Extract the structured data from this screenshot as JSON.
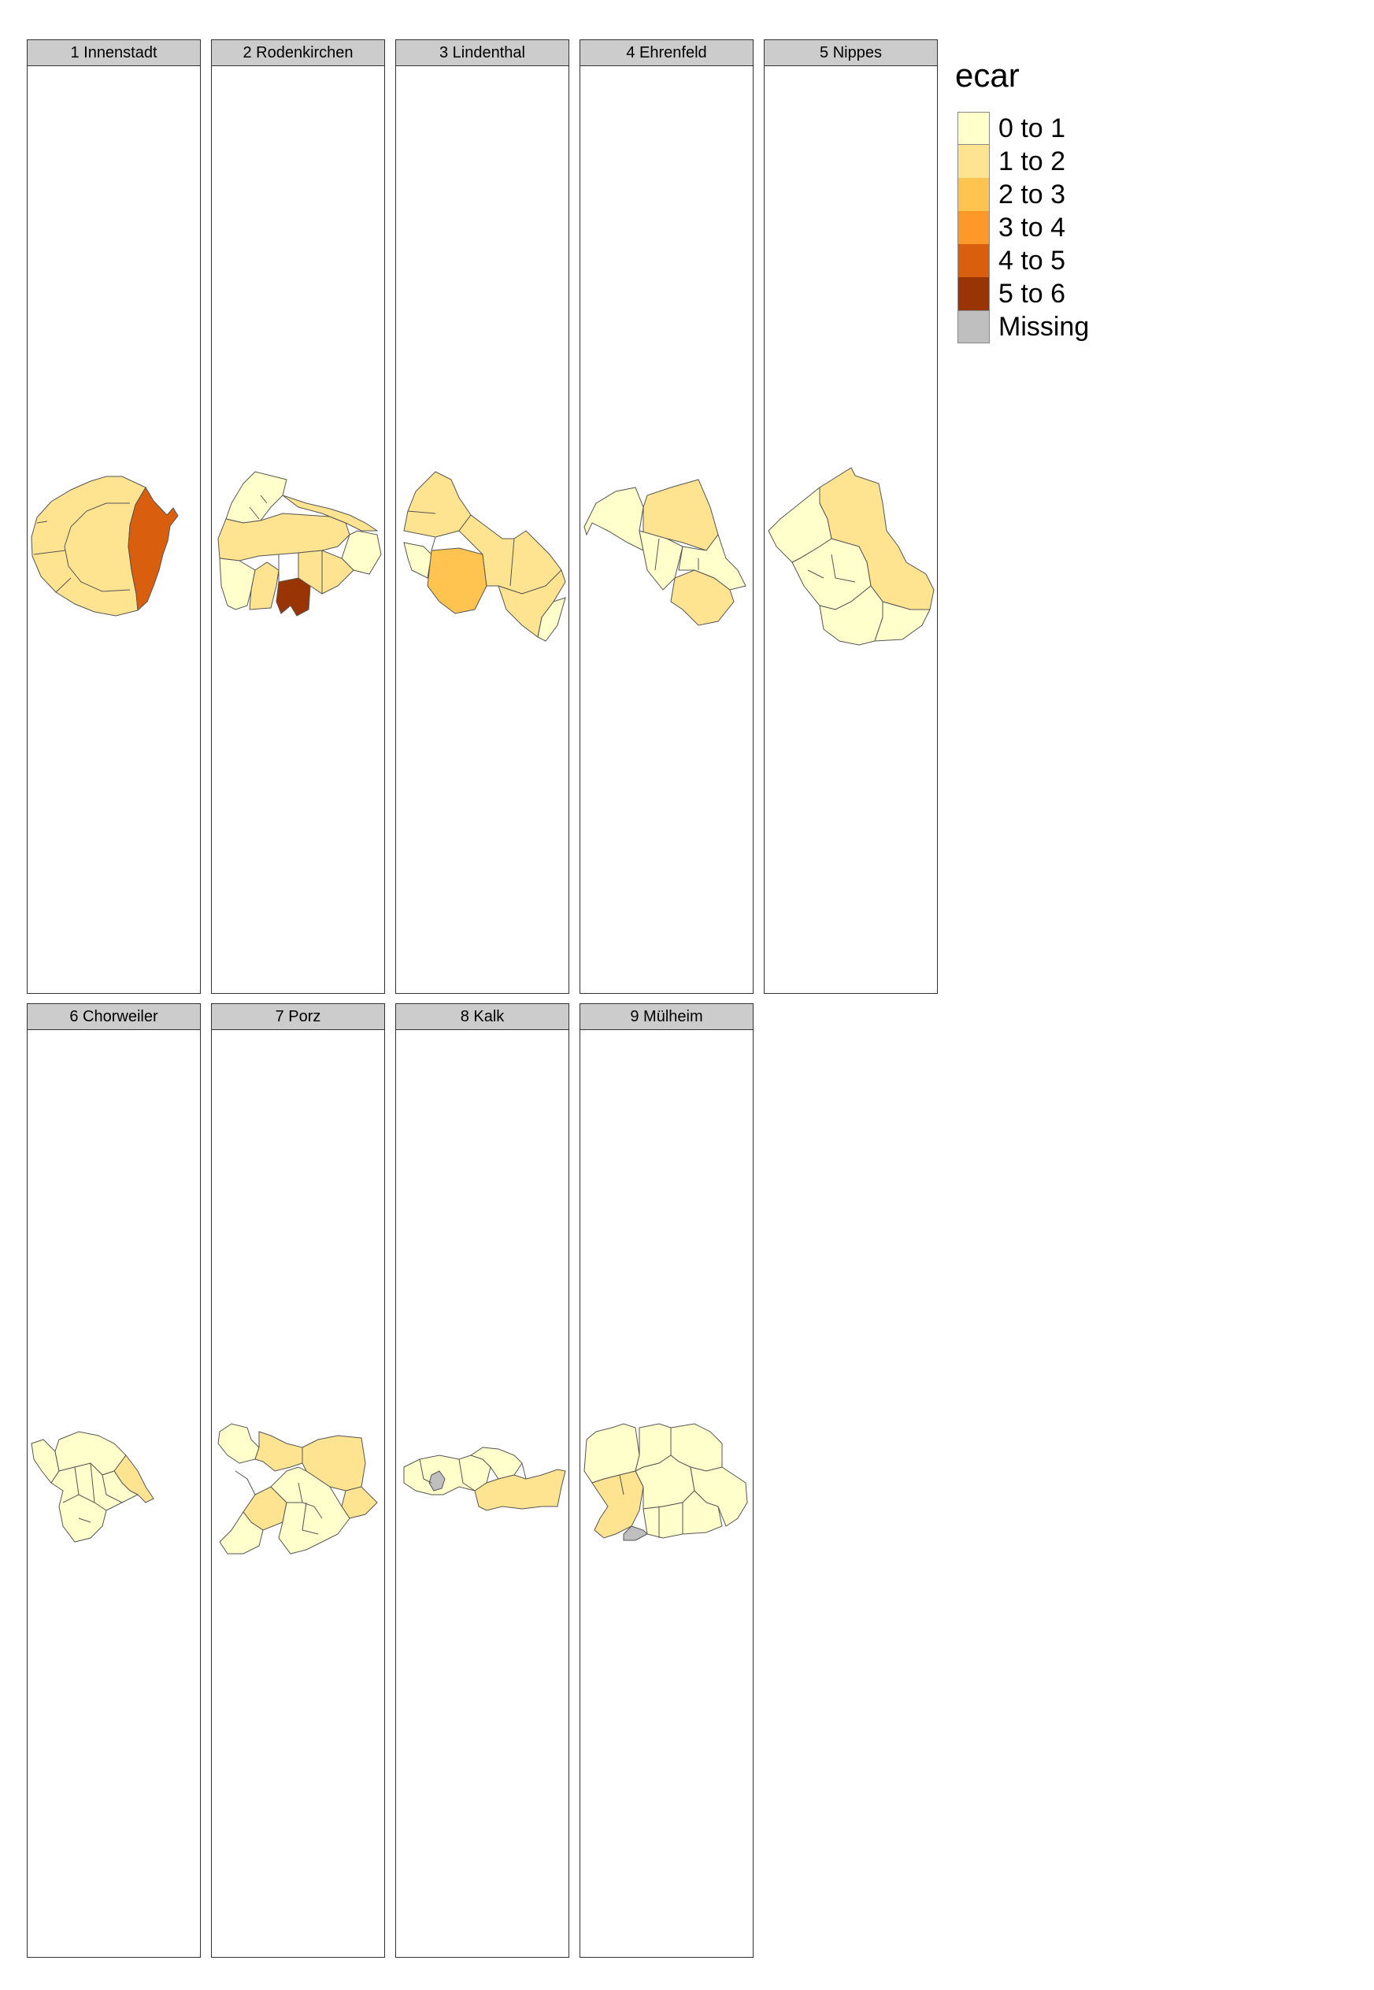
{
  "legend": {
    "title": "ecar",
    "items": [
      {
        "label": "0 to 1",
        "color": "#ffffcc"
      },
      {
        "label": "1 to 2",
        "color": "#fee391"
      },
      {
        "label": "2 to 3",
        "color": "#fec44f"
      },
      {
        "label": "3 to 4",
        "color": "#fe9929"
      },
      {
        "label": "4 to 5",
        "color": "#d95f0e"
      },
      {
        "label": "5 to 6",
        "color": "#993404"
      },
      {
        "label": "Missing",
        "color": "#bfbfbf"
      }
    ]
  },
  "panels": [
    {
      "title": "1 Innenstadt"
    },
    {
      "title": "2 Rodenkirchen"
    },
    {
      "title": "3 Lindenthal"
    },
    {
      "title": "4 Ehrenfeld"
    },
    {
      "title": "5 Nippes"
    },
    {
      "title": "6 Chorweiler"
    },
    {
      "title": "7 Porz"
    },
    {
      "title": "8 Kalk"
    },
    {
      "title": "9 Mülheim"
    }
  ],
  "colors": {
    "outline": "#333333",
    "strip_bg": "#cccccc",
    "border": "#666666"
  }
}
